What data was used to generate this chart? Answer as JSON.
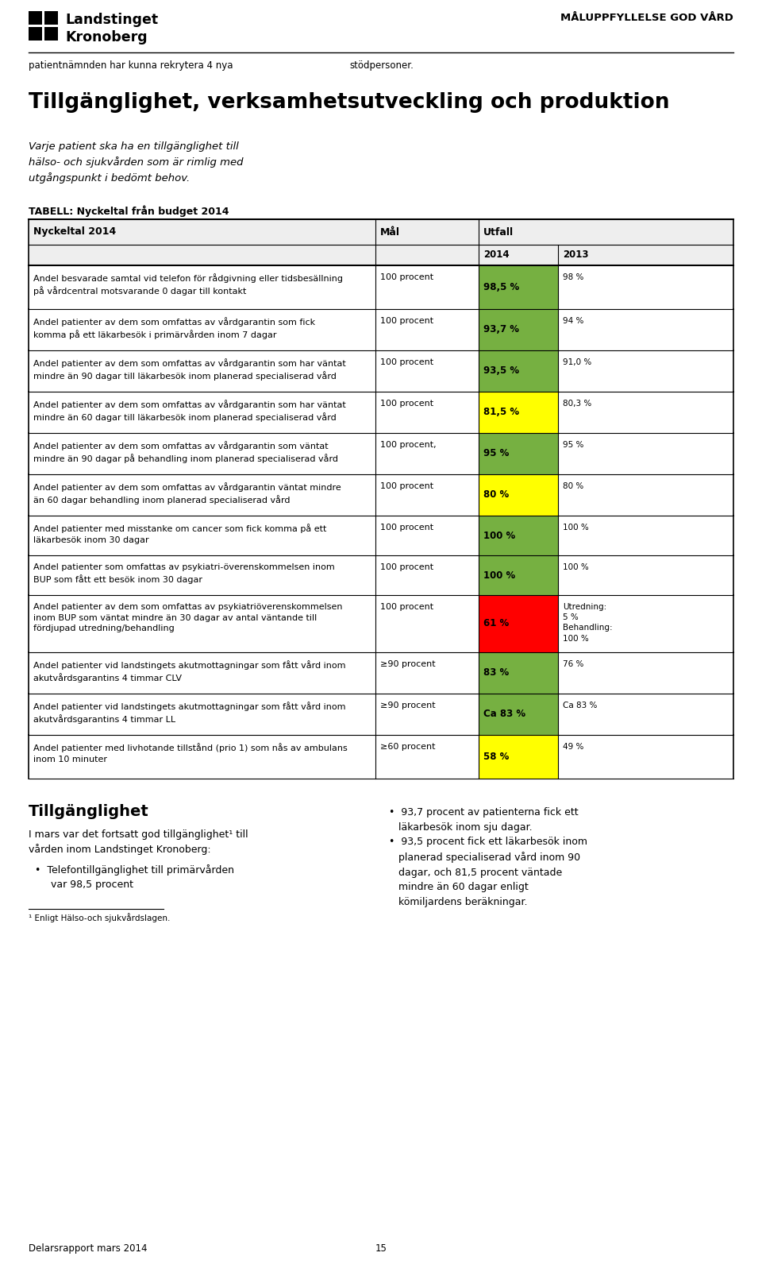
{
  "page_header_left": "patientnämnden har kunna rekrytera 4 nya",
  "page_header_right": "stödpersoner.",
  "top_right_text": "MÅLUPPFYLLELSE GOD VÅRD",
  "section_title": "Tillgänglighet, verksamhetsutveckling och produktion",
  "section_subtitle": "Varje patient ska ha en tillgänglighet till\nhälso- och sjukvården som är rimlig med\nutgångspunkt i bedömt behov.",
  "table_caption": "TABELL: Nyckeltal från budget 2014",
  "col_headers": [
    "Nyckeltal 2014",
    "Mål",
    "Utfall"
  ],
  "sub_headers": [
    "2014",
    "2013"
  ],
  "rows": [
    {
      "nyckeltal": "Andel besvarade samtal vid telefon för rådgivning eller tidsbesällning\npå vårdcentral motsvarande 0 dagar till kontakt",
      "mal": "100 procent",
      "utfall_2014": "98,5 %",
      "utfall_2013": "98 %",
      "color_2014": "#76b041",
      "color_2013": "white"
    },
    {
      "nyckeltal": "Andel patienter av dem som omfattas av vårdgarantin som fick\nkomma på ett läkarbesök i primärvården inom 7 dagar",
      "mal": "100 procent",
      "utfall_2014": "93,7 %",
      "utfall_2013": "94 %",
      "color_2014": "#76b041",
      "color_2013": "white"
    },
    {
      "nyckeltal": "Andel patienter av dem som omfattas av vårdgarantin som har väntat\nmindre än 90 dagar till läkarbesök inom planerad specialiserad vård",
      "mal": "100 procent",
      "utfall_2014": "93,5 %",
      "utfall_2013": "91,0 %",
      "color_2014": "#76b041",
      "color_2013": "white"
    },
    {
      "nyckeltal": "Andel patienter av dem som omfattas av vårdgarantin som har väntat\nmindre än 60 dagar till läkarbesök inom planerad specialiserad vård",
      "mal": "100 procent",
      "utfall_2014": "81,5 %",
      "utfall_2013": "80,3 %",
      "color_2014": "#ffff00",
      "color_2013": "white"
    },
    {
      "nyckeltal": "Andel patienter av dem som omfattas av vårdgarantin som väntat\nmindre än 90 dagar på behandling inom planerad specialiserad vård",
      "mal": "100 procent,",
      "utfall_2014": "95 %",
      "utfall_2013": "95 %",
      "color_2014": "#76b041",
      "color_2013": "white"
    },
    {
      "nyckeltal": "Andel patienter av dem som omfattas av vårdgarantin väntat mindre\nän 60 dagar behandling inom planerad specialiserad vård",
      "mal": "100 procent",
      "utfall_2014": "80 %",
      "utfall_2013": "80 %",
      "color_2014": "#ffff00",
      "color_2013": "white"
    },
    {
      "nyckeltal": "Andel patienter med misstanke om cancer som fick komma på ett\nläkarbesök inom 30 dagar",
      "mal": "100 procent",
      "utfall_2014": "100 %",
      "utfall_2013": "100 %",
      "color_2014": "#76b041",
      "color_2013": "white"
    },
    {
      "nyckeltal": "Andel patienter som omfattas av psykiatri-överenskommelsen inom\nBUP som fått ett besök inom 30 dagar",
      "mal": "100 procent",
      "utfall_2014": "100 %",
      "utfall_2013": "100 %",
      "color_2014": "#76b041",
      "color_2013": "white"
    },
    {
      "nyckeltal": "Andel patienter av dem som omfattas av psykiatriöverenskommelsen\ninom BUP som väntat mindre än 30 dagar av antal väntande till\nfördjupad utredning/behandling",
      "mal": "100 procent",
      "utfall_2014": "61 %",
      "utfall_2013": "Utredning:\n5 %\nBehandling:\n100 %",
      "color_2014": "#ff0000",
      "color_2013": "white"
    },
    {
      "nyckeltal": "Andel patienter vid landstingets akutmottagningar som fått vård inom\nakutvårdsgarantins 4 timmar CLV",
      "mal": "≥90 procent",
      "utfall_2014": "83 %",
      "utfall_2013": "76 %",
      "color_2014": "#76b041",
      "color_2013": "white"
    },
    {
      "nyckeltal": "Andel patienter vid landstingets akutmottagningar som fått vård inom\nakutvårdsgarantins 4 timmar LL",
      "mal": "≥90 procent",
      "utfall_2014": "Ca 83 %",
      "utfall_2013": "Ca 83 %",
      "color_2014": "#76b041",
      "color_2013": "white"
    },
    {
      "nyckeltal": "Andel patienter med livhotande tillstånd (prio 1) som nås av ambulans\ninom 10 minuter",
      "mal": "≥60 procent",
      "utfall_2014": "58 %",
      "utfall_2013": "49 %",
      "color_2014": "#ffff00",
      "color_2013": "white"
    }
  ],
  "footer_title": "Tillgänglighet",
  "footer_note": "¹ Enligt Hälso-och sjukvårdslagen.",
  "footer_page_left": "Delarsrapport mars 2014",
  "footer_page_num": "15"
}
